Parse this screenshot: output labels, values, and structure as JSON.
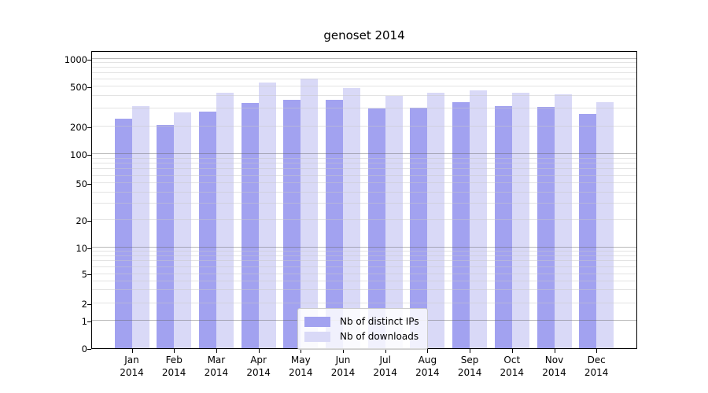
{
  "chart_data": {
    "type": "bar",
    "title": "genoset 2014",
    "categories": [
      "Jan",
      "Feb",
      "Mar",
      "Apr",
      "May",
      "Jun",
      "Jul",
      "Aug",
      "Sep",
      "Oct",
      "Nov",
      "Dec"
    ],
    "category_year": "2014",
    "series": [
      {
        "name": "Nb of distinct IPs",
        "color": "#a2a2f0",
        "values": [
          240,
          205,
          280,
          340,
          365,
          370,
          300,
          305,
          350,
          320,
          315,
          265
        ]
      },
      {
        "name": "Nb of downloads",
        "color": "#d9d9f7",
        "values": [
          320,
          275,
          430,
          555,
          605,
          480,
          400,
          435,
          460,
          430,
          420,
          350
        ]
      }
    ],
    "xlabel": "",
    "ylabel": "",
    "yscale": "symlog",
    "ylim": [
      0,
      1100
    ],
    "yticks": [
      {
        "label": "0",
        "value": 0,
        "pos": 0.0
      },
      {
        "label": "1",
        "value": 1,
        "pos": 0.0923
      },
      {
        "label": "2",
        "value": 2,
        "pos": 0.1512
      },
      {
        "label": "5",
        "value": 5,
        "pos": 0.2507
      },
      {
        "label": "10",
        "value": 10,
        "pos": 0.3404
      },
      {
        "label": "20",
        "value": 20,
        "pos": 0.4327
      },
      {
        "label": "50",
        "value": 50,
        "pos": 0.5559
      },
      {
        "label": "100",
        "value": 100,
        "pos": 0.6543
      },
      {
        "label": "200",
        "value": 200,
        "pos": 0.7493
      },
      {
        "label": "500",
        "value": 500,
        "pos": 0.8831
      },
      {
        "label": "1000",
        "value": 1000,
        "pos": 0.9763
      }
    ],
    "major_grid_values": [
      1,
      10,
      100,
      1000
    ],
    "minor_gridlines": [
      3,
      4,
      6,
      7,
      8,
      9,
      30,
      40,
      60,
      70,
      80,
      90,
      300,
      400,
      600,
      700,
      800,
      900
    ],
    "grid": "horizontal",
    "legend": {
      "position": "lower center"
    },
    "colors": {
      "axis": "#000000",
      "legend_border": "#cccccc",
      "major_grid": "#b0b0b0",
      "minor_grid": "#e3e3e3"
    }
  }
}
